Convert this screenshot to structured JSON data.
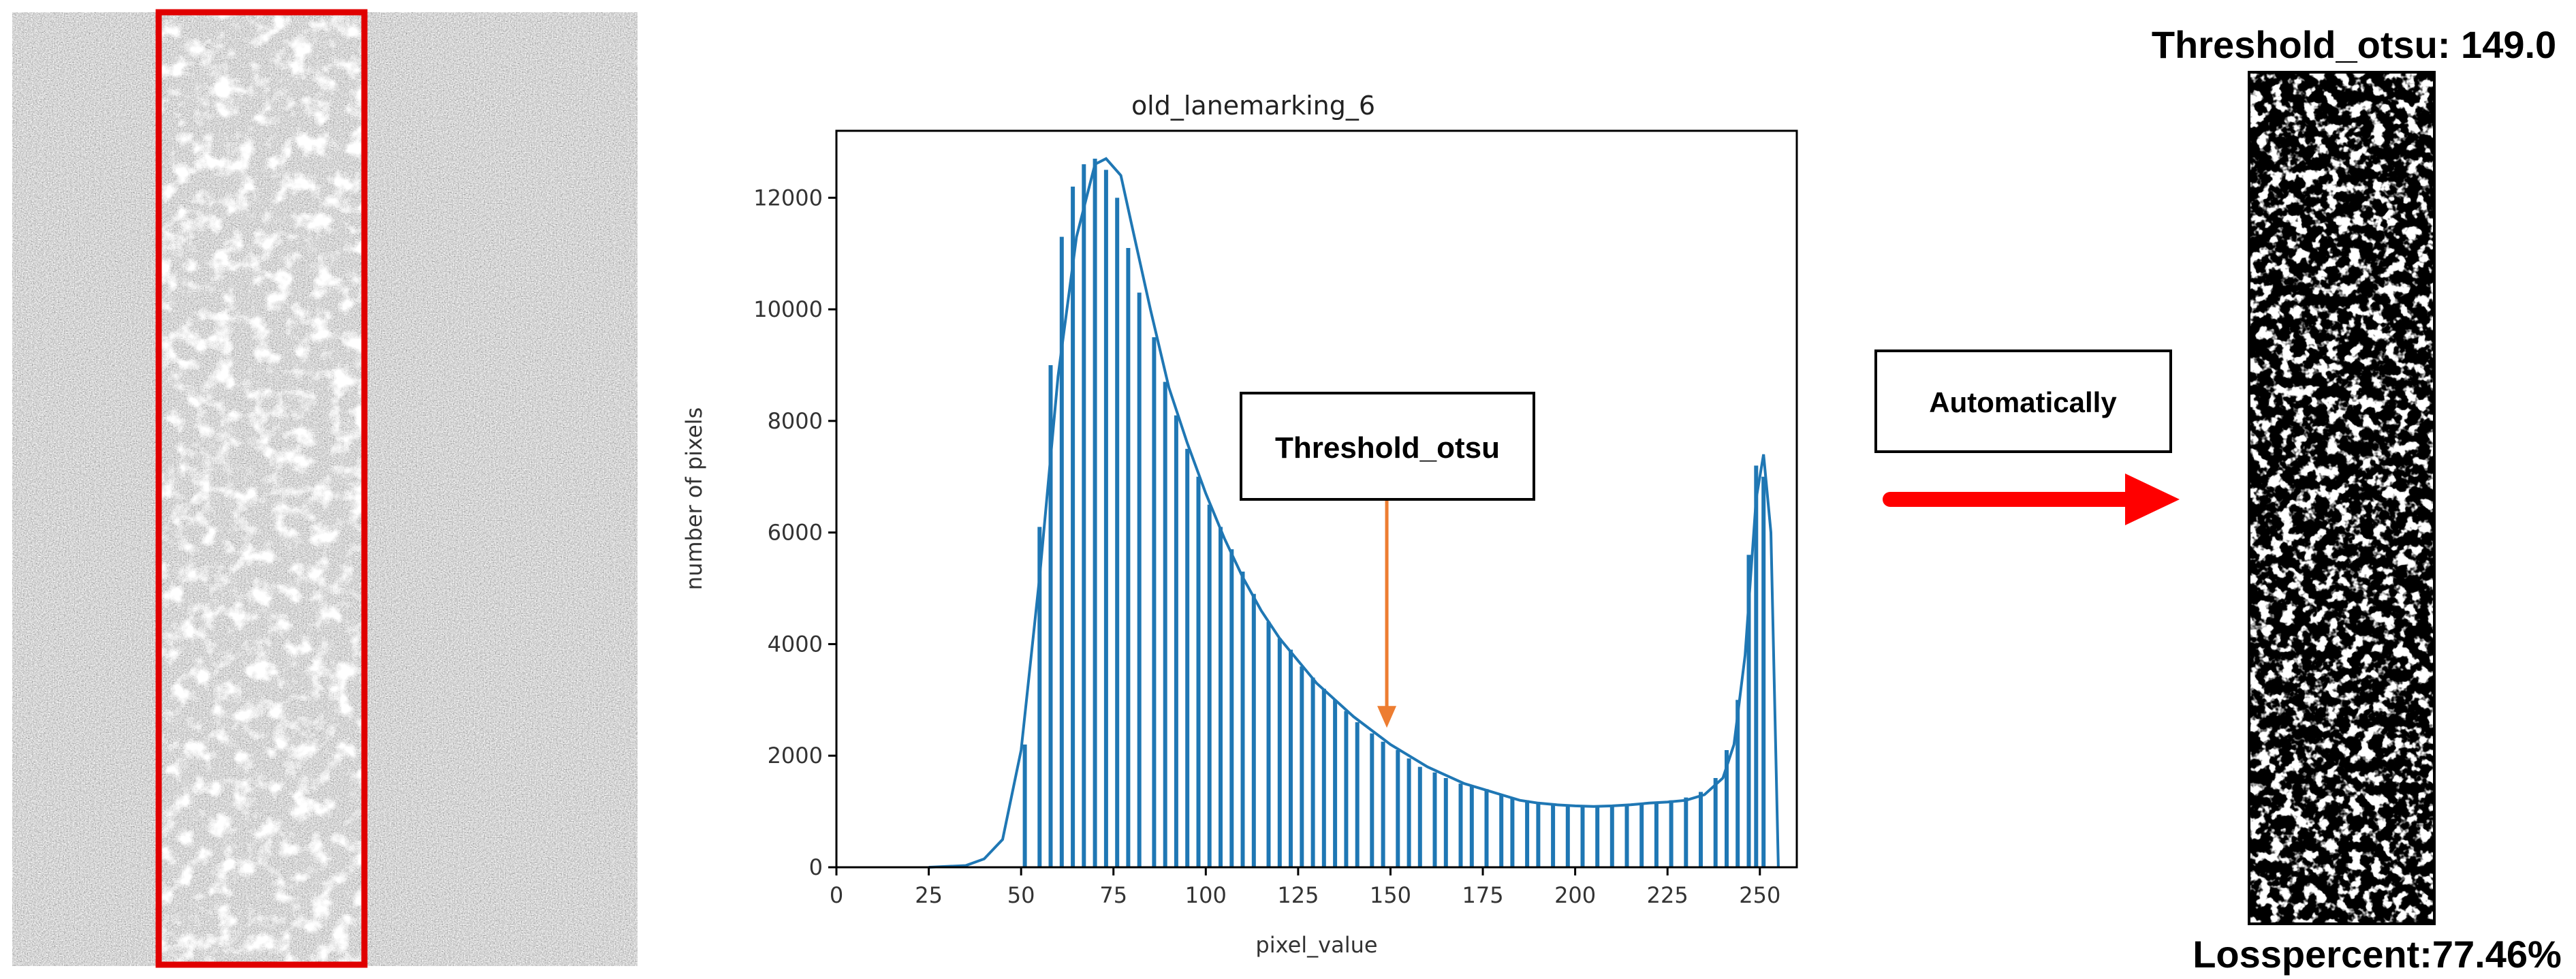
{
  "annotation": {
    "threshold_box_label": "Threshold_otsu",
    "process_box_label": "Automatically"
  },
  "result_panel": {
    "threshold_text": "Threshold_otsu: 149.0",
    "loss_text": "Losspercent:77.46%"
  },
  "colors": {
    "histogram_blue": "#1f77b4",
    "arrow_orange": "#ed7d31",
    "process_arrow_red": "#ff0000",
    "roi_box_red": "#e00000"
  },
  "chart_data": {
    "type": "bar",
    "title": "old_lanemarking_6",
    "xlabel": "pixel_value",
    "ylabel": "number of pixels",
    "xlim": [
      0,
      260
    ],
    "ylim": [
      0,
      13200
    ],
    "xticks": [
      0,
      25,
      50,
      75,
      100,
      125,
      150,
      175,
      200,
      225,
      250
    ],
    "yticks": [
      0,
      2000,
      4000,
      6000,
      8000,
      10000,
      12000
    ],
    "grid": false,
    "threshold": 149.0,
    "arrow_target": {
      "x": 149,
      "y": 2500
    },
    "outline": {
      "x": [
        25,
        35,
        40,
        45,
        50,
        55,
        60,
        65,
        70,
        73,
        77,
        80,
        85,
        90,
        95,
        100,
        105,
        110,
        115,
        120,
        125,
        130,
        135,
        140,
        145,
        150,
        155,
        160,
        165,
        170,
        175,
        180,
        185,
        190,
        195,
        200,
        205,
        210,
        215,
        220,
        225,
        230,
        235,
        240,
        243,
        246,
        249,
        251,
        253,
        255
      ],
      "y": [
        0,
        30,
        150,
        500,
        2100,
        5200,
        8800,
        11300,
        12600,
        12700,
        12400,
        11500,
        10000,
        8600,
        7600,
        6700,
        5900,
        5200,
        4600,
        4100,
        3700,
        3300,
        3000,
        2700,
        2450,
        2200,
        2000,
        1800,
        1650,
        1500,
        1400,
        1300,
        1200,
        1150,
        1120,
        1100,
        1090,
        1100,
        1120,
        1150,
        1170,
        1200,
        1300,
        1600,
        2200,
        3800,
        6600,
        7400,
        6000,
        0
      ]
    },
    "bars": {
      "x": [
        51,
        55,
        58,
        61,
        64,
        67,
        70,
        73,
        76,
        79,
        82,
        86,
        89,
        92,
        95,
        98,
        101,
        104,
        107,
        110,
        113,
        117,
        120,
        123,
        126,
        129,
        132,
        135,
        138,
        141,
        145,
        148,
        152,
        155,
        158,
        162,
        165,
        169,
        172,
        176,
        180,
        183,
        187,
        190,
        194,
        198,
        202,
        206,
        210,
        214,
        218,
        222,
        226,
        230,
        234,
        238,
        241,
        244,
        247,
        249,
        251
      ],
      "y": [
        2200,
        6100,
        9000,
        11300,
        12200,
        12600,
        12700,
        12500,
        12000,
        11100,
        10300,
        9500,
        8700,
        8100,
        7500,
        7000,
        6500,
        6100,
        5700,
        5300,
        4900,
        4400,
        4100,
        3900,
        3600,
        3400,
        3200,
        3000,
        2800,
        2600,
        2400,
        2250,
        2100,
        1950,
        1800,
        1700,
        1600,
        1500,
        1450,
        1400,
        1300,
        1250,
        1200,
        1150,
        1120,
        1100,
        1100,
        1100,
        1100,
        1120,
        1150,
        1170,
        1200,
        1250,
        1350,
        1600,
        2100,
        3000,
        5600,
        7200,
        7000
      ]
    }
  }
}
